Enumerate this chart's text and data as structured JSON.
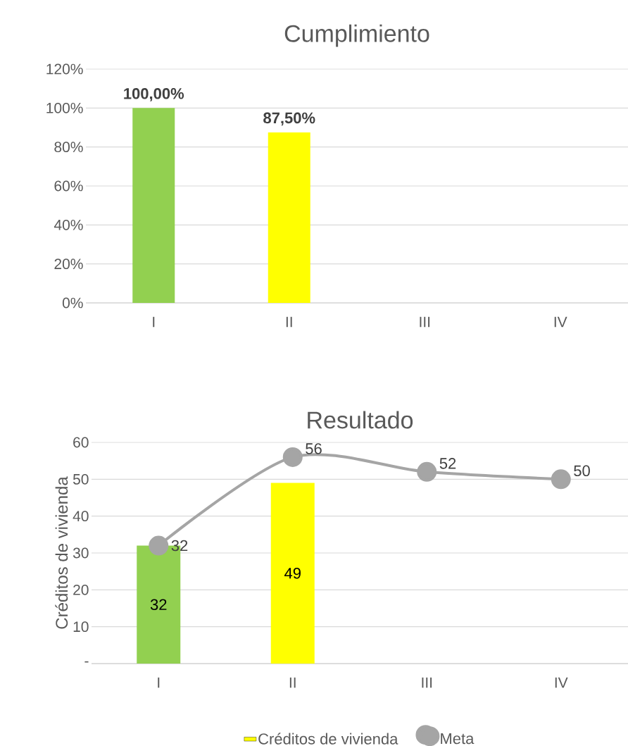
{
  "chart_data": [
    {
      "type": "bar",
      "title": "Cumplimiento",
      "categories": [
        "I",
        "II",
        "III",
        "IV"
      ],
      "values": [
        100,
        87.5,
        null,
        null
      ],
      "colors": [
        "#92d050",
        "#ffff00",
        null,
        null
      ],
      "value_labels": [
        "100,00%",
        "87,50%",
        null,
        null
      ],
      "ylim": [
        0,
        120
      ],
      "yticks": [
        {
          "value": 0,
          "label": "0%"
        },
        {
          "value": 20,
          "label": "20%"
        },
        {
          "value": 40,
          "label": "40%"
        },
        {
          "value": 60,
          "label": "60%"
        },
        {
          "value": 80,
          "label": "80%"
        },
        {
          "value": 100,
          "label": "100%"
        },
        {
          "value": 120,
          "label": "120%"
        }
      ],
      "grid": "y"
    },
    {
      "type": "bar",
      "title": "Resultado",
      "ylabel": "Créditos de vivienda",
      "categories": [
        "I",
        "II",
        "III",
        "IV"
      ],
      "series": [
        {
          "name": "Créditos de vivienda",
          "type": "bar",
          "color": "#ffff00",
          "colors": [
            "#92d050",
            "#ffff00",
            null,
            null
          ],
          "values": [
            32,
            49,
            null,
            null
          ]
        },
        {
          "name": "Meta",
          "type": "line",
          "color": "#a5a5a5",
          "marker": "circle",
          "values": [
            32,
            56,
            52,
            50
          ]
        }
      ],
      "ylim": [
        0,
        60
      ],
      "yticks": [
        {
          "value": 0,
          "label": "-"
        },
        10,
        20,
        30,
        40,
        50,
        60
      ],
      "grid": "y",
      "legend": "bottom",
      "data_labels": true
    }
  ]
}
